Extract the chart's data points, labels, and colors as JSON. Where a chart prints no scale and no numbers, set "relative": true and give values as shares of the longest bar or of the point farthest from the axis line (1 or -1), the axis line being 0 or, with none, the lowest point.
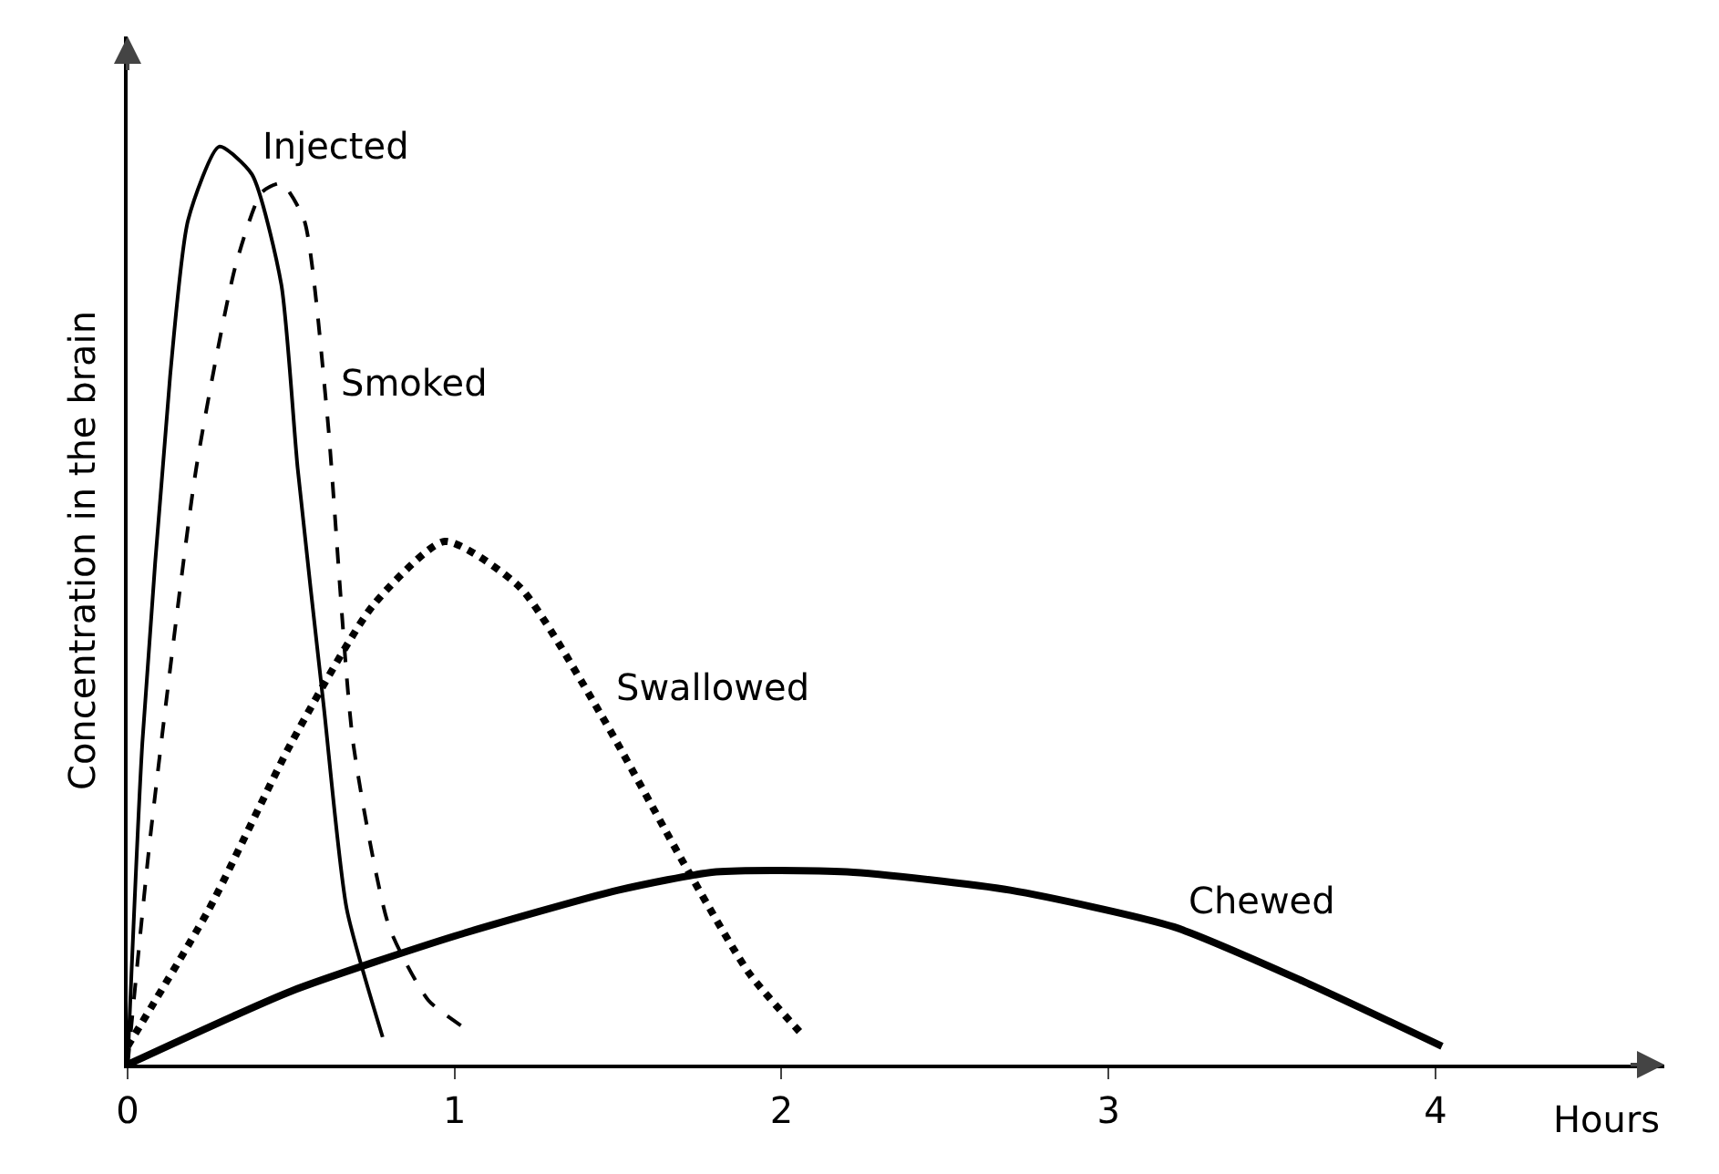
{
  "chart_data": {
    "type": "line",
    "relative": true,
    "xlabel": "Hours",
    "ylabel": "Concentration in the brain",
    "xlim": [
      0,
      4.7
    ],
    "xticks": [
      0,
      1,
      2,
      3,
      4
    ],
    "grid": false,
    "legend": false,
    "marker": "none",
    "series": [
      {
        "name": "Injected",
        "color": "#000000",
        "line_style": "solid",
        "x": [
          0,
          0.045,
          0.13,
          0.185,
          0.28,
          0.38,
          0.47,
          0.52,
          0.6,
          0.67,
          0.78
        ],
        "values": [
          0,
          0.35,
          0.75,
          0.92,
          1,
          0.97,
          0.85,
          0.65,
          0.39,
          0.17,
          0.03
        ]
      },
      {
        "name": "Smoked",
        "color": "#000000",
        "line_style": "dashed",
        "x": [
          0,
          0.07,
          0.21,
          0.33,
          0.41,
          0.47,
          0.54,
          0.61,
          0.69,
          0.8,
          0.92,
          1.03
        ],
        "values": [
          0,
          0.25,
          0.65,
          0.87,
          0.95,
          0.96,
          0.92,
          0.71,
          0.35,
          0.15,
          0.07,
          0.04
        ]
      },
      {
        "name": "Swallowed",
        "color": "#000000",
        "line_style": "dotted",
        "x": [
          0,
          0.25,
          0.5,
          0.75,
          0.97,
          1.2,
          1.45,
          1.7,
          1.9,
          2.07
        ],
        "values": [
          0.02,
          0.17,
          0.35,
          0.5,
          0.57,
          0.52,
          0.38,
          0.22,
          0.1,
          0.03
        ]
      },
      {
        "name": "Chewed",
        "color": "#000000",
        "line_style": "solid",
        "x": [
          0,
          0.5,
          1,
          1.5,
          1.8,
          2.2,
          2.7,
          3.2,
          3.6,
          4.02
        ],
        "values": [
          0,
          0.08,
          0.14,
          0.19,
          0.21,
          0.21,
          0.19,
          0.15,
          0.09,
          0.02
        ]
      }
    ]
  }
}
